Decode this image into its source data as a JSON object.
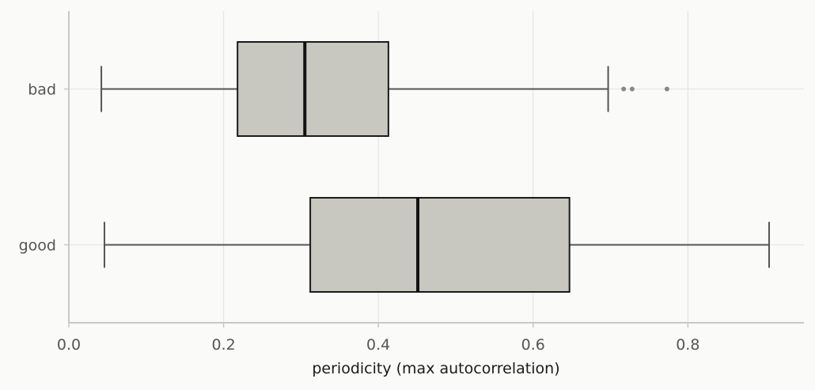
{
  "chart_data": {
    "type": "boxplot",
    "orientation": "horizontal",
    "title": "",
    "xlabel": "periodicity (max autocorrelation)",
    "ylabel": "",
    "xlim": [
      0.0,
      0.95
    ],
    "xticks": [
      0.0,
      0.2,
      0.4,
      0.6,
      0.8
    ],
    "xtick_labels": [
      "0.0",
      "0.2",
      "0.4",
      "0.6",
      "0.8"
    ],
    "grid": true,
    "categories": [
      "bad",
      "good"
    ],
    "boxes": [
      {
        "category": "bad",
        "whisker_low": 0.042,
        "q1": 0.218,
        "median": 0.305,
        "q3": 0.413,
        "whisker_high": 0.697,
        "outliers": [
          0.717,
          0.728,
          0.773
        ]
      },
      {
        "category": "good",
        "whisker_low": 0.046,
        "q1": 0.312,
        "median": 0.451,
        "q3": 0.647,
        "whisker_high": 0.905,
        "outliers": []
      }
    ],
    "colors": {
      "background": "#fafaf8",
      "box_fill": "#c8c8c0",
      "box_edge": "#1a1a1a",
      "median": "#111111",
      "whisker": "#555555",
      "grid": "#e6e6e4",
      "axis": "#c8c8c4",
      "outlier": "#888888"
    }
  }
}
